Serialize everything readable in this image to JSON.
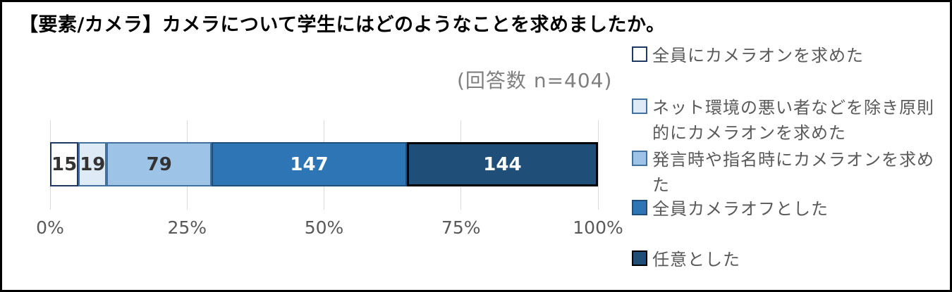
{
  "frame": {
    "border_color": "#000000",
    "background": "#ffffff"
  },
  "chart_data": {
    "type": "bar",
    "variant": "horizontal-stacked",
    "title": "【要素/カメラ】カメラについて学生にはどのようなことを求めましたか。",
    "subtitle": "(回答数 n=404)",
    "n_total": 404,
    "xlabel": "",
    "ylabel": "",
    "x_axis": {
      "ticks": [
        "0%",
        "25%",
        "50%",
        "75%",
        "100%"
      ],
      "range_percent": [
        0,
        100
      ],
      "grid": true,
      "gridline_color": "#d9d9d9"
    },
    "legend_position": "right",
    "series": [
      {
        "name": "全員にカメラオンを求めた",
        "value": 15,
        "fill": "#ffffff",
        "border": "#1f3864",
        "label_color": "#333333"
      },
      {
        "name": "ネット環境の悪い者などを除き原則的にカメラオンを求めた",
        "value": 19,
        "fill": "#deebf7",
        "border": "#41719c",
        "label_color": "#333333"
      },
      {
        "name": "発言時や指名時にカメラオンを求めた",
        "value": 79,
        "fill": "#9dc3e6",
        "border": "#41719c",
        "label_color": "#333333"
      },
      {
        "name": "全員カメラオフとした",
        "value": 147,
        "fill": "#2e75b6",
        "border": "#1f4e79",
        "label_color": "#ffffff"
      },
      {
        "name": "任意とした",
        "value": 144,
        "fill": "#1f4e79",
        "border": "#000000",
        "label_color": "#ffffff"
      }
    ],
    "text_colors": {
      "axis": "#595959",
      "legend": "#595959",
      "subtitle": "#7f7f7f",
      "title": "#000000"
    }
  }
}
